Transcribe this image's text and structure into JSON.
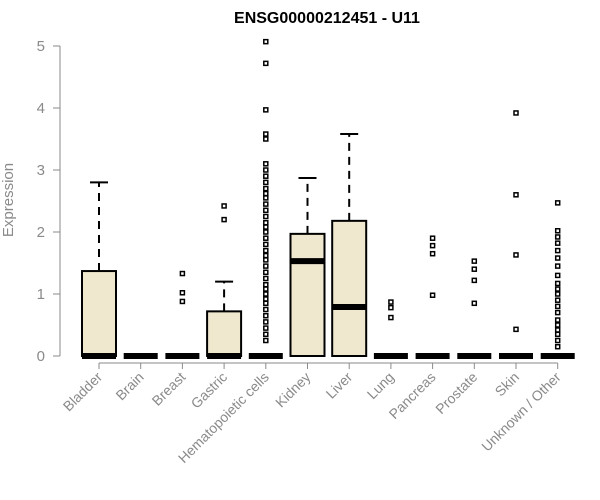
{
  "chart_data": {
    "type": "box",
    "title": "ENSG00000212451 - U11",
    "ylabel": "Expression",
    "xlabel": "",
    "ylim": [
      0,
      5
    ],
    "yticks": [
      0,
      1,
      2,
      3,
      4,
      5
    ],
    "grid": false,
    "legend": "none",
    "colors": {
      "box_fill": "#efe8cf",
      "stroke": "#000000",
      "axis": "#8a8a8a"
    },
    "categories": [
      "Bladder",
      "Brain",
      "Breast",
      "Gastric",
      "Hematopoietic cells",
      "Kidney",
      "Liver",
      "Lung",
      "Pancreas",
      "Prostate",
      "Skin",
      "Unknown / Other"
    ],
    "series": [
      {
        "category": "Bladder",
        "q1": 0,
        "median": 0,
        "q3": 1.37,
        "whisker_low": 0,
        "whisker_high": 2.8,
        "outliers": []
      },
      {
        "category": "Brain",
        "q1": 0,
        "median": 0,
        "q3": 0,
        "whisker_low": 0,
        "whisker_high": 0,
        "outliers": []
      },
      {
        "category": "Breast",
        "q1": 0,
        "median": 0,
        "q3": 0,
        "whisker_low": 0,
        "whisker_high": 0,
        "outliers": [
          0.88,
          1.02,
          1.33
        ]
      },
      {
        "category": "Gastric",
        "q1": 0,
        "median": 0,
        "q3": 0.72,
        "whisker_low": 0,
        "whisker_high": 1.2,
        "outliers": [
          2.2,
          2.42
        ]
      },
      {
        "category": "Hematopoietic cells",
        "q1": 0,
        "median": 0,
        "q3": 0,
        "whisker_low": 0,
        "whisker_high": 0,
        "outliers": [
          0.25,
          0.35,
          0.45,
          0.55,
          0.65,
          0.75,
          0.85,
          0.92,
          1.0,
          1.08,
          1.15,
          1.25,
          1.35,
          1.45,
          1.55,
          1.62,
          1.7,
          1.8,
          1.9,
          2.0,
          2.08,
          2.15,
          2.25,
          2.35,
          2.45,
          2.55,
          2.62,
          2.7,
          2.8,
          2.9,
          3.0,
          3.1,
          3.5,
          3.58,
          3.97,
          4.72,
          5.07
        ]
      },
      {
        "category": "Kidney",
        "q1": 0,
        "median": 1.53,
        "q3": 1.97,
        "whisker_low": 0,
        "whisker_high": 2.87,
        "outliers": []
      },
      {
        "category": "Liver",
        "q1": 0,
        "median": 0.79,
        "q3": 2.18,
        "whisker_low": 0,
        "whisker_high": 3.58,
        "outliers": []
      },
      {
        "category": "Lung",
        "q1": 0,
        "median": 0,
        "q3": 0,
        "whisker_low": 0,
        "whisker_high": 0,
        "outliers": [
          0.62,
          0.78,
          0.87
        ]
      },
      {
        "category": "Pancreas",
        "q1": 0,
        "median": 0,
        "q3": 0,
        "whisker_low": 0,
        "whisker_high": 0,
        "outliers": [
          0.98,
          1.65,
          1.78,
          1.9
        ]
      },
      {
        "category": "Prostate",
        "q1": 0,
        "median": 0,
        "q3": 0,
        "whisker_low": 0,
        "whisker_high": 0,
        "outliers": [
          0.85,
          1.22,
          1.4,
          1.53
        ]
      },
      {
        "category": "Skin",
        "q1": 0,
        "median": 0,
        "q3": 0,
        "whisker_low": 0,
        "whisker_high": 0,
        "outliers": [
          0.43,
          1.63,
          2.6,
          3.92
        ]
      },
      {
        "category": "Unknown / Other",
        "q1": 0,
        "median": 0,
        "q3": 0,
        "whisker_low": 0,
        "whisker_high": 0,
        "outliers": [
          0.15,
          0.25,
          0.35,
          0.42,
          0.5,
          0.58,
          0.7,
          0.8,
          0.9,
          1.0,
          1.08,
          1.17,
          1.3,
          1.45,
          1.58,
          1.7,
          1.82,
          1.92,
          2.02,
          2.47
        ]
      }
    ]
  }
}
